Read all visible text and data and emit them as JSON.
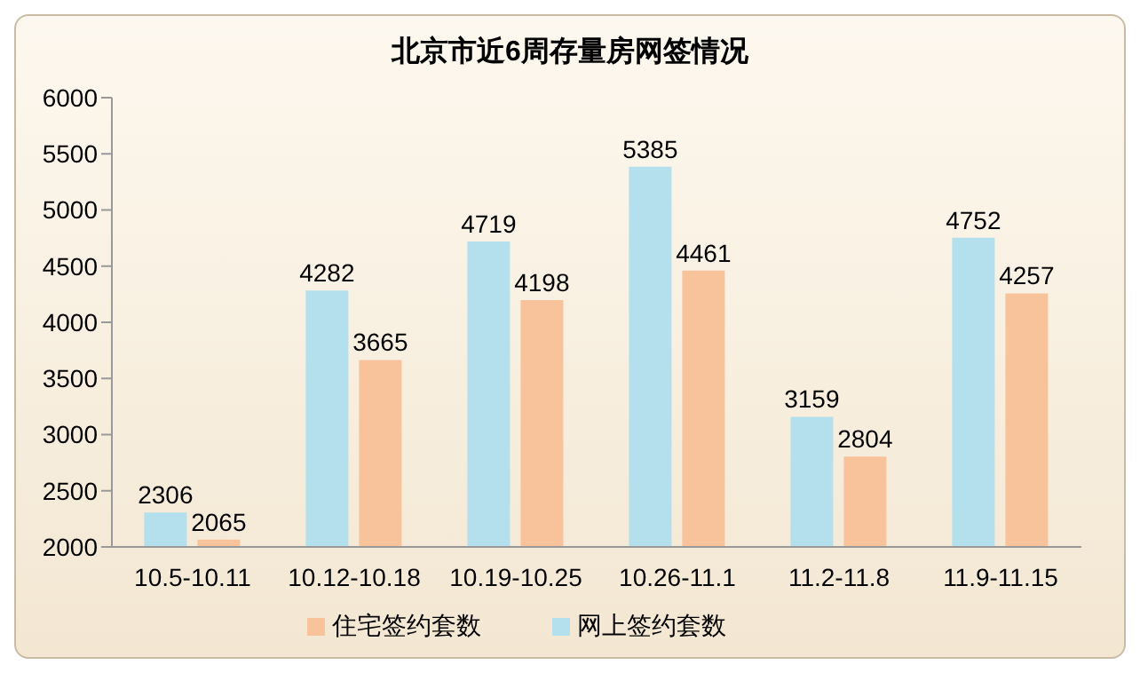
{
  "chart_data": {
    "type": "bar",
    "title": "北京市近6周存量房网签情况",
    "categories": [
      "10.5-10.11",
      "10.12-10.18",
      "10.19-10.25",
      "10.26-11.1",
      "11.2-11.8",
      "11.9-11.15"
    ],
    "series": [
      {
        "name": "网上签约套数",
        "color": "#b3e0ec",
        "values": [
          2306,
          4282,
          4719,
          5385,
          3159,
          4752
        ]
      },
      {
        "name": "住宅签约套数",
        "color": "#f8c39b",
        "values": [
          2065,
          3665,
          4198,
          4461,
          2804,
          4257
        ]
      }
    ],
    "ylim": [
      2000,
      6000
    ],
    "yticks": [
      2000,
      2500,
      3000,
      3500,
      4000,
      4500,
      5000,
      5500,
      6000
    ],
    "data_labels": true,
    "legend": "bottom",
    "grid": false
  }
}
